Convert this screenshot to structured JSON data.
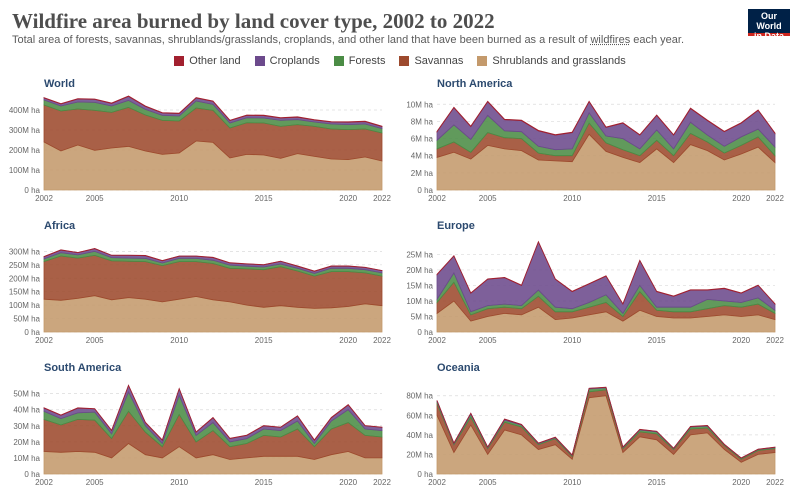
{
  "header": {
    "title": "Wildfire area burned by land cover type, 2002 to 2022",
    "subtitle_pre": "Total area of forests, savannas, shrublands/grasslands, croplands, and other land that have been burned as a result of ",
    "subtitle_link": "wildfires",
    "subtitle_post": " each year.",
    "logo_line1": "Our World",
    "logo_line2": "in Data"
  },
  "legend": [
    {
      "label": "Other land",
      "color": "#a2202f"
    },
    {
      "label": "Croplands",
      "color": "#6c4a8c"
    },
    {
      "label": "Forests",
      "color": "#4b8c45"
    },
    {
      "label": "Savannas",
      "color": "#9d4a2e"
    },
    {
      "label": "Shrublands and grasslands",
      "color": "#c49a6c"
    }
  ],
  "chart_data": [
    {
      "type": "area",
      "title": "World",
      "unit": "ha",
      "x": [
        2002,
        2003,
        2004,
        2005,
        2006,
        2007,
        2008,
        2009,
        2010,
        2011,
        2012,
        2013,
        2014,
        2015,
        2016,
        2017,
        2018,
        2019,
        2020,
        2021,
        2022
      ],
      "ylim": [
        0,
        450
      ],
      "yticks": [
        0,
        100,
        200,
        300,
        400
      ],
      "ytick_labels": [
        "0 ha",
        "100M ha",
        "200M ha",
        "300M ha",
        "400M ha"
      ],
      "xticks": [
        2002,
        2005,
        2010,
        2015,
        2020,
        2022
      ],
      "series": [
        {
          "name": "Shrublands and grasslands",
          "values": [
            240,
            195,
            225,
            198,
            210,
            218,
            195,
            178,
            185,
            245,
            238,
            160,
            178,
            175,
            158,
            182,
            168,
            155,
            152,
            165,
            145
          ]
        },
        {
          "name": "Savannas",
          "values": [
            185,
            200,
            180,
            200,
            178,
            195,
            180,
            170,
            160,
            165,
            160,
            150,
            158,
            160,
            160,
            145,
            150,
            150,
            150,
            140,
            140
          ]
        },
        {
          "name": "Forests",
          "values": [
            25,
            25,
            35,
            40,
            32,
            35,
            28,
            25,
            25,
            35,
            30,
            25,
            25,
            25,
            30,
            25,
            22,
            25,
            25,
            25,
            22
          ]
        },
        {
          "name": "Croplands",
          "values": [
            10,
            10,
            15,
            15,
            13,
            20,
            15,
            12,
            12,
            15,
            15,
            12,
            12,
            12,
            12,
            12,
            10,
            10,
            12,
            12,
            10
          ]
        },
        {
          "name": "Other land",
          "values": [
            2,
            2,
            2,
            2,
            2,
            2,
            2,
            2,
            2,
            2,
            2,
            2,
            2,
            2,
            2,
            2,
            2,
            2,
            2,
            2,
            2
          ]
        }
      ]
    },
    {
      "type": "area",
      "title": "North America",
      "unit": "ha",
      "x": [
        2002,
        2003,
        2004,
        2005,
        2006,
        2007,
        2008,
        2009,
        2010,
        2011,
        2012,
        2013,
        2014,
        2015,
        2016,
        2017,
        2018,
        2019,
        2020,
        2021,
        2022
      ],
      "ylim": [
        0,
        10.5
      ],
      "yticks": [
        0,
        2,
        4,
        6,
        8,
        10
      ],
      "ytick_labels": [
        "0 ha",
        "2M ha",
        "4M ha",
        "6M ha",
        "8M ha",
        "10M ha"
      ],
      "xticks": [
        2002,
        2005,
        2010,
        2015,
        2020,
        2022
      ],
      "series": [
        {
          "name": "Shrublands and grasslands",
          "values": [
            3.8,
            4.4,
            3.6,
            5.2,
            4.8,
            4.6,
            3.5,
            3.4,
            3.3,
            6.5,
            4.5,
            3.8,
            3.2,
            4.8,
            3.2,
            5.3,
            4.6,
            3.5,
            4.2,
            5.0,
            3.2
          ]
        },
        {
          "name": "Savannas",
          "values": [
            1.0,
            1.2,
            0.8,
            1.5,
            1.3,
            1.4,
            0.8,
            0.6,
            0.7,
            1.3,
            1.0,
            0.9,
            0.8,
            1.0,
            0.8,
            1.3,
            1.0,
            0.8,
            1.0,
            1.2,
            0.8
          ]
        },
        {
          "name": "Forests",
          "values": [
            1.0,
            2.0,
            1.5,
            2.0,
            0.8,
            0.8,
            0.8,
            0.7,
            0.8,
            1.2,
            0.8,
            1.3,
            0.8,
            1.2,
            0.8,
            1.3,
            0.8,
            0.8,
            1.0,
            0.9,
            1.0
          ]
        },
        {
          "name": "Croplands",
          "values": [
            1.0,
            2.0,
            1.5,
            1.6,
            1.3,
            1.3,
            1.8,
            1.7,
            1.9,
            1.3,
            1.0,
            1.8,
            1.6,
            1.7,
            1.6,
            1.6,
            1.7,
            1.7,
            1.6,
            2.2,
            1.6
          ]
        },
        {
          "name": "Other land",
          "values": [
            0.05,
            0.05,
            0.05,
            0.05,
            0.05,
            0.05,
            0.05,
            0.05,
            0.05,
            0.05,
            0.05,
            0.05,
            0.05,
            0.05,
            0.05,
            0.05,
            0.05,
            0.05,
            0.05,
            0.05,
            0.05
          ]
        }
      ]
    },
    {
      "type": "area",
      "title": "Africa",
      "unit": "ha",
      "x": [
        2002,
        2003,
        2004,
        2005,
        2006,
        2007,
        2008,
        2009,
        2010,
        2011,
        2012,
        2013,
        2014,
        2015,
        2016,
        2017,
        2018,
        2019,
        2020,
        2021,
        2022
      ],
      "ylim": [
        0,
        335
      ],
      "yticks": [
        0,
        50,
        100,
        150,
        200,
        250,
        300
      ],
      "ytick_labels": [
        "0 ha",
        "50M ha",
        "100M ha",
        "150M ha",
        "200M ha",
        "250M ha",
        "300M ha"
      ],
      "xticks": [
        2002,
        2005,
        2010,
        2015,
        2020,
        2022
      ],
      "series": [
        {
          "name": "Shrublands and grasslands",
          "values": [
            122,
            118,
            125,
            135,
            120,
            128,
            122,
            112,
            122,
            132,
            120,
            112,
            100,
            92,
            98,
            92,
            88,
            90,
            95,
            105,
            98
          ]
        },
        {
          "name": "Savannas",
          "values": [
            140,
            165,
            150,
            150,
            145,
            135,
            140,
            135,
            140,
            130,
            135,
            125,
            135,
            140,
            145,
            135,
            120,
            135,
            130,
            115,
            110
          ]
        },
        {
          "name": "Forests",
          "values": [
            10,
            12,
            12,
            15,
            12,
            12,
            12,
            10,
            12,
            12,
            12,
            12,
            10,
            10,
            10,
            10,
            10,
            12,
            12,
            12,
            12
          ]
        },
        {
          "name": "Croplands",
          "values": [
            8,
            10,
            8,
            10,
            8,
            10,
            10,
            8,
            8,
            8,
            10,
            8,
            8,
            8,
            10,
            8,
            8,
            8,
            8,
            8,
            8
          ]
        },
        {
          "name": "Other land",
          "values": [
            1,
            1,
            1,
            1,
            1,
            1,
            1,
            1,
            1,
            1,
            1,
            1,
            1,
            1,
            1,
            1,
            1,
            1,
            1,
            1,
            1
          ]
        }
      ]
    },
    {
      "type": "area",
      "title": "Europe",
      "unit": "ha",
      "x": [
        2002,
        2003,
        2004,
        2005,
        2006,
        2007,
        2008,
        2009,
        2010,
        2011,
        2012,
        2013,
        2014,
        2015,
        2016,
        2017,
        2018,
        2019,
        2020,
        2021,
        2022
      ],
      "ylim": [
        0,
        29
      ],
      "yticks": [
        0,
        5,
        10,
        15,
        20,
        25
      ],
      "ytick_labels": [
        "0 ha",
        "5M ha",
        "10M ha",
        "15M ha",
        "20M ha",
        "25M ha"
      ],
      "xticks": [
        2002,
        2005,
        2010,
        2015,
        2020,
        2022
      ],
      "series": [
        {
          "name": "Shrublands and grasslands",
          "values": [
            6,
            10,
            3.5,
            5,
            6,
            5.5,
            8,
            4,
            4.5,
            5.5,
            6.5,
            3.5,
            7,
            5,
            4.5,
            4.5,
            5,
            5.5,
            5,
            5.5,
            4
          ]
        },
        {
          "name": "Savannas",
          "values": [
            3.5,
            6,
            2,
            2.5,
            2,
            2,
            3.5,
            2.5,
            2,
            2.5,
            3,
            1.5,
            6,
            2,
            2,
            2,
            2.5,
            3,
            3,
            3.5,
            2
          ]
        },
        {
          "name": "Forests",
          "values": [
            1,
            3,
            1,
            1,
            1,
            1,
            2,
            1.5,
            1,
            1.5,
            2.5,
            1,
            2,
            1,
            1.5,
            1.5,
            3,
            1.5,
            1.5,
            2,
            1
          ]
        },
        {
          "name": "Croplands",
          "values": [
            8,
            5.5,
            6,
            8.5,
            8.5,
            6.5,
            15.5,
            9,
            5.5,
            6,
            6,
            3,
            8,
            5,
            3.5,
            5.5,
            3,
            4,
            3,
            4,
            2
          ]
        },
        {
          "name": "Other land",
          "values": [
            0.1,
            0.1,
            0.1,
            0.1,
            0.1,
            0.1,
            0.1,
            0.1,
            0.1,
            0.1,
            0.1,
            0.1,
            0.1,
            0.1,
            0.1,
            0.1,
            0.1,
            0.1,
            0.1,
            0.1,
            0.1
          ]
        }
      ]
    },
    {
      "type": "area",
      "title": "South America",
      "unit": "ha",
      "x": [
        2002,
        2003,
        2004,
        2005,
        2006,
        2007,
        2008,
        2009,
        2010,
        2011,
        2012,
        2013,
        2014,
        2015,
        2016,
        2017,
        2018,
        2019,
        2020,
        2021,
        2022
      ],
      "ylim": [
        0,
        56
      ],
      "yticks": [
        0,
        10,
        20,
        30,
        40,
        50
      ],
      "ytick_labels": [
        "0 ha",
        "10M ha",
        "20M ha",
        "30M ha",
        "40M ha",
        "50M ha"
      ],
      "xticks": [
        2002,
        2005,
        2010,
        2015,
        2020,
        2022
      ],
      "series": [
        {
          "name": "Shrublands and grasslands",
          "values": [
            14,
            13.5,
            14,
            13.5,
            10,
            19,
            12,
            10,
            17,
            10,
            12,
            9,
            10,
            11,
            11,
            11,
            9,
            12,
            14,
            10,
            10
          ]
        },
        {
          "name": "Savannas",
          "values": [
            20,
            17,
            20,
            20,
            12,
            20,
            14,
            7,
            20,
            10,
            15,
            8,
            9,
            13,
            12,
            17,
            8,
            16,
            18,
            14,
            13
          ]
        },
        {
          "name": "Forests",
          "values": [
            5,
            4,
            4,
            5,
            3,
            12,
            4,
            2,
            12,
            4,
            5,
            3,
            3,
            4,
            4,
            5,
            2,
            5,
            8,
            4,
            4
          ]
        },
        {
          "name": "Croplands",
          "values": [
            2,
            2,
            3,
            2,
            2,
            4,
            2,
            2,
            4,
            2,
            3,
            2,
            2,
            2,
            2,
            3,
            2,
            2,
            3,
            2,
            2
          ]
        },
        {
          "name": "Other land",
          "values": [
            0.2,
            0.2,
            0.2,
            0.2,
            0.2,
            0.2,
            0.2,
            0.2,
            0.2,
            0.2,
            0.2,
            0.2,
            0.2,
            0.2,
            0.2,
            0.2,
            0.2,
            0.2,
            0.2,
            0.2,
            0.2
          ]
        }
      ]
    },
    {
      "type": "area",
      "title": "Oceania",
      "unit": "ha",
      "x": [
        2002,
        2003,
        2004,
        2005,
        2006,
        2007,
        2008,
        2009,
        2010,
        2011,
        2012,
        2013,
        2014,
        2015,
        2016,
        2017,
        2018,
        2019,
        2020,
        2021,
        2022
      ],
      "ylim": [
        0,
        92
      ],
      "yticks": [
        0,
        20,
        40,
        60,
        80
      ],
      "ytick_labels": [
        "0 ha",
        "20M ha",
        "40M ha",
        "60M ha",
        "80M ha"
      ],
      "xticks": [
        2002,
        2005,
        2010,
        2015,
        2020,
        2022
      ],
      "series": [
        {
          "name": "Shrublands and grasslands",
          "values": [
            60,
            22,
            50,
            20,
            45,
            40,
            25,
            30,
            15,
            78,
            80,
            22,
            38,
            35,
            20,
            40,
            42,
            25,
            12,
            20,
            22
          ]
        },
        {
          "name": "Savannas",
          "values": [
            12,
            8,
            8,
            6,
            8,
            8,
            5,
            6,
            3,
            6,
            6,
            4,
            5,
            6,
            5,
            6,
            5,
            4,
            3,
            4,
            4
          ]
        },
        {
          "name": "Forests",
          "values": [
            2,
            1,
            3,
            1,
            2,
            2,
            1,
            1,
            1,
            3,
            2,
            1,
            2,
            2,
            1,
            2,
            2,
            1,
            1,
            1,
            1
          ]
        },
        {
          "name": "Croplands",
          "values": [
            1,
            0.5,
            1,
            0.5,
            1,
            0.5,
            0.5,
            0.5,
            0.3,
            0.5,
            0.5,
            0.5,
            0.5,
            0.5,
            0.3,
            0.5,
            0.5,
            0.3,
            0.3,
            0.3,
            0.3
          ]
        },
        {
          "name": "Other land",
          "values": [
            0.2,
            0.2,
            0.2,
            0.2,
            0.2,
            0.2,
            0.2,
            0.2,
            0.2,
            0.2,
            0.2,
            0.2,
            0.2,
            0.2,
            0.2,
            0.2,
            0.2,
            0.2,
            0.2,
            0.2,
            0.2
          ]
        }
      ]
    }
  ]
}
